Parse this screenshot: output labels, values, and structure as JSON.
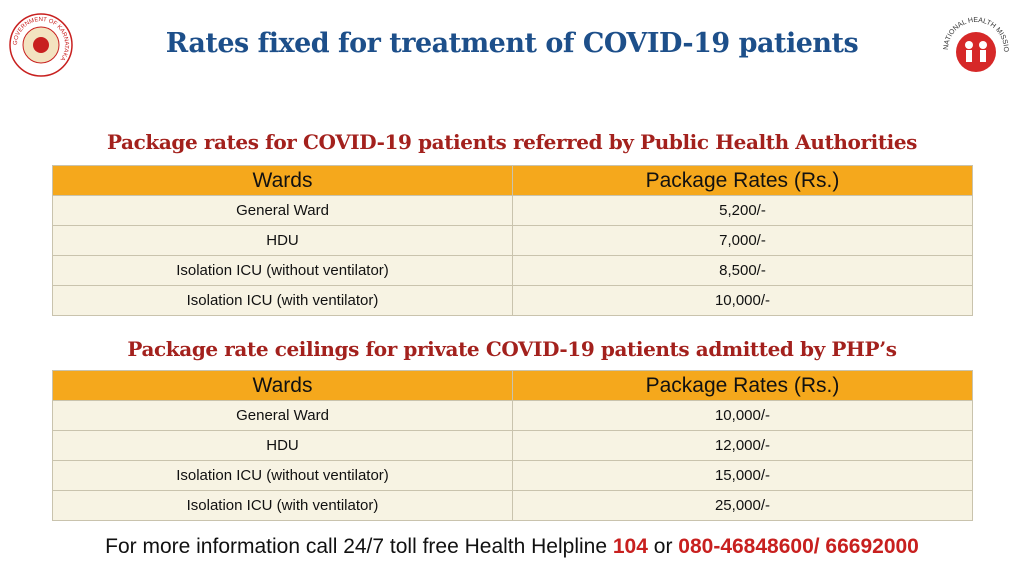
{
  "header": {
    "title": "Rates fixed for treatment of COVID-19 patients",
    "left_logo_text": "GOVERNMENT OF KARNATAKA",
    "right_logo_text": "NATIONAL HEALTH MISSION"
  },
  "tables": [
    {
      "title": "Package rates for COVID-19 patients referred by Public Health Authorities",
      "header": [
        "Wards",
        "Package Rates (Rs.)"
      ],
      "rows": [
        [
          "General Ward",
          "5,200/-"
        ],
        [
          "HDU",
          "7,000/-"
        ],
        [
          "Isolation ICU (without ventilator)",
          "8,500/-"
        ],
        [
          "Isolation ICU (with ventilator)",
          "10,000/-"
        ]
      ]
    },
    {
      "title": "Package rate ceilings for private COVID-19 patients admitted by PHP’s",
      "header": [
        "Wards",
        "Package Rates (Rs.)"
      ],
      "rows": [
        [
          "General Ward",
          "10,000/-"
        ],
        [
          "HDU",
          "12,000/-"
        ],
        [
          "Isolation ICU (without ventilator)",
          "15,000/-"
        ],
        [
          "Isolation ICU (with ventilator)",
          "25,000/-"
        ]
      ]
    }
  ],
  "footer": {
    "text": "For more information call 24/7 toll free Health Helpline",
    "number": "104",
    "joiner": "or",
    "phones": "080-46848600/ 66692000"
  }
}
